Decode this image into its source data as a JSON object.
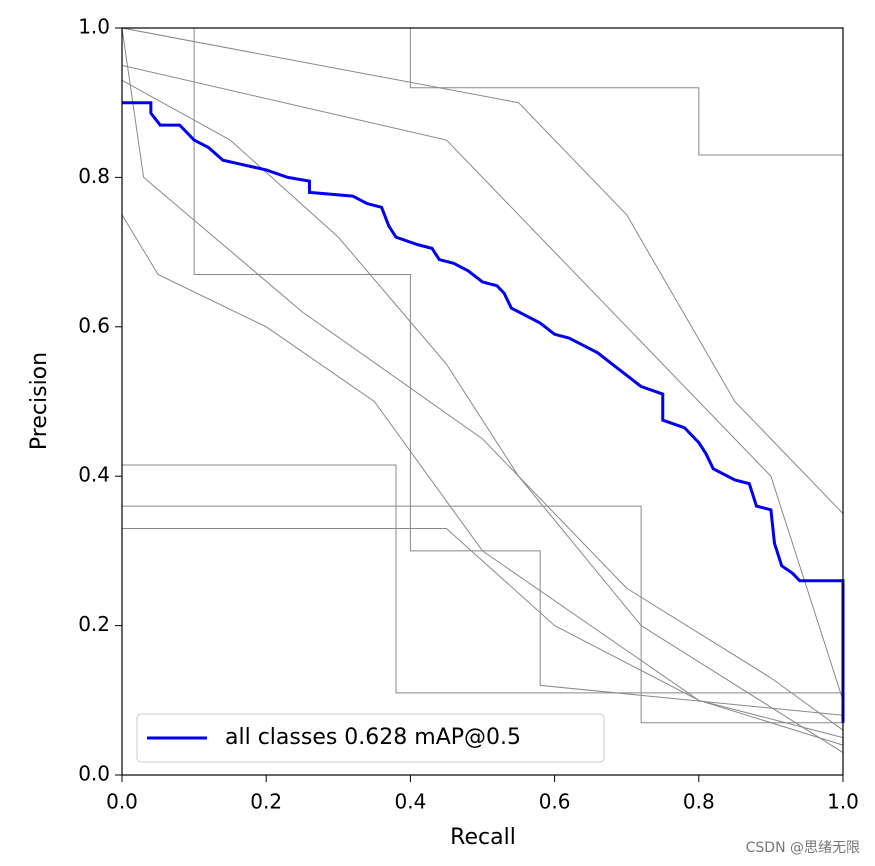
{
  "chart_data": {
    "type": "line",
    "xlabel": "Recall",
    "ylabel": "Precision",
    "xlim": [
      0,
      1
    ],
    "ylim": [
      0,
      1
    ],
    "xticks": [
      {
        "value": 0,
        "label": "0.0"
      },
      0.2,
      0.4,
      0.6,
      0.8,
      {
        "value": 1,
        "label": "1.0"
      }
    ],
    "yticks": [
      {
        "value": 0,
        "label": "0.0"
      },
      0.2,
      0.4,
      0.6,
      0.8,
      {
        "value": 1,
        "label": "1.0"
      }
    ],
    "legend": "lower left",
    "watermark": "CSDN @思绪无限",
    "series": [
      {
        "name": "all classes 0.628 mAP@0.5",
        "color": "#0000ee",
        "x": [
          0,
          0.04,
          0.04,
          0.053,
          0.08,
          0.1,
          0.12,
          0.14,
          0.2,
          0.23,
          0.26,
          0.26,
          0.32,
          0.34,
          0.36,
          0.37,
          0.38,
          0.41,
          0.43,
          0.44,
          0.46,
          0.48,
          0.5,
          0.52,
          0.53,
          0.54,
          0.56,
          0.58,
          0.6,
          0.62,
          0.64,
          0.66,
          0.68,
          0.7,
          0.72,
          0.75,
          0.75,
          0.78,
          0.8,
          0.81,
          0.82,
          0.85,
          0.87,
          0.88,
          0.9,
          0.905,
          0.915,
          0.93,
          0.94,
          1,
          1
        ],
        "values": [
          0.9,
          0.9,
          0.886,
          0.87,
          0.87,
          0.85,
          0.84,
          0.823,
          0.81,
          0.8,
          0.795,
          0.78,
          0.775,
          0.765,
          0.76,
          0.735,
          0.72,
          0.71,
          0.705,
          0.69,
          0.685,
          0.675,
          0.66,
          0.655,
          0.645,
          0.625,
          0.615,
          0.605,
          0.59,
          0.585,
          0.575,
          0.565,
          0.55,
          0.535,
          0.52,
          0.51,
          0.475,
          0.465,
          0.445,
          0.43,
          0.41,
          0.395,
          0.39,
          0.36,
          0.355,
          0.31,
          0.28,
          0.27,
          0.26,
          0.26,
          0.07
        ]
      },
      {
        "color": "#888888",
        "x": [
          0,
          0.38,
          0.38,
          1
        ],
        "values": [
          0.415,
          0.415,
          0.11,
          0.11
        ]
      },
      {
        "color": "#888888",
        "x": [
          0,
          0.72,
          0.72,
          1
        ],
        "values": [
          0.36,
          0.36,
          0.07,
          0.07
        ]
      },
      {
        "color": "#888888",
        "x": [
          0,
          0.1,
          0.1,
          0.4,
          0.4,
          0.58,
          0.58,
          1
        ],
        "values": [
          1,
          1,
          0.67,
          0.67,
          0.3,
          0.3,
          0.12,
          0.08
        ]
      },
      {
        "color": "#888888",
        "x": [
          0,
          0.4,
          0.4,
          0.8,
          0.8,
          1
        ],
        "values": [
          1,
          1,
          0.92,
          0.92,
          0.83,
          0.83
        ]
      },
      {
        "color": "#888888",
        "x": [
          0,
          0.45,
          0.6,
          0.75,
          0.9,
          1
        ],
        "values": [
          0.95,
          0.85,
          0.7,
          0.55,
          0.4,
          0.1
        ]
      },
      {
        "color": "#888888",
        "x": [
          0,
          0.05,
          0.2,
          0.35,
          0.5,
          0.65,
          0.8,
          1
        ],
        "values": [
          0.75,
          0.67,
          0.6,
          0.5,
          0.3,
          0.2,
          0.1,
          0.05
        ]
      },
      {
        "color": "#888888",
        "x": [
          0,
          0.03,
          0.25,
          0.5,
          0.7,
          0.9,
          1
        ],
        "values": [
          1,
          0.8,
          0.62,
          0.45,
          0.25,
          0.13,
          0.06
        ]
      },
      {
        "color": "#888888",
        "x": [
          0,
          0.55,
          0.7,
          0.85,
          1
        ],
        "values": [
          1,
          0.9,
          0.75,
          0.5,
          0.35
        ]
      },
      {
        "color": "#888888",
        "x": [
          0,
          0.15,
          0.3,
          0.45,
          0.55,
          0.72,
          1
        ],
        "values": [
          0.93,
          0.85,
          0.72,
          0.55,
          0.4,
          0.2,
          0.03
        ]
      },
      {
        "color": "#888888",
        "x": [
          0,
          0.2,
          0.45,
          0.6,
          0.8,
          1
        ],
        "values": [
          0.33,
          0.33,
          0.33,
          0.2,
          0.1,
          0.04
        ]
      }
    ]
  }
}
